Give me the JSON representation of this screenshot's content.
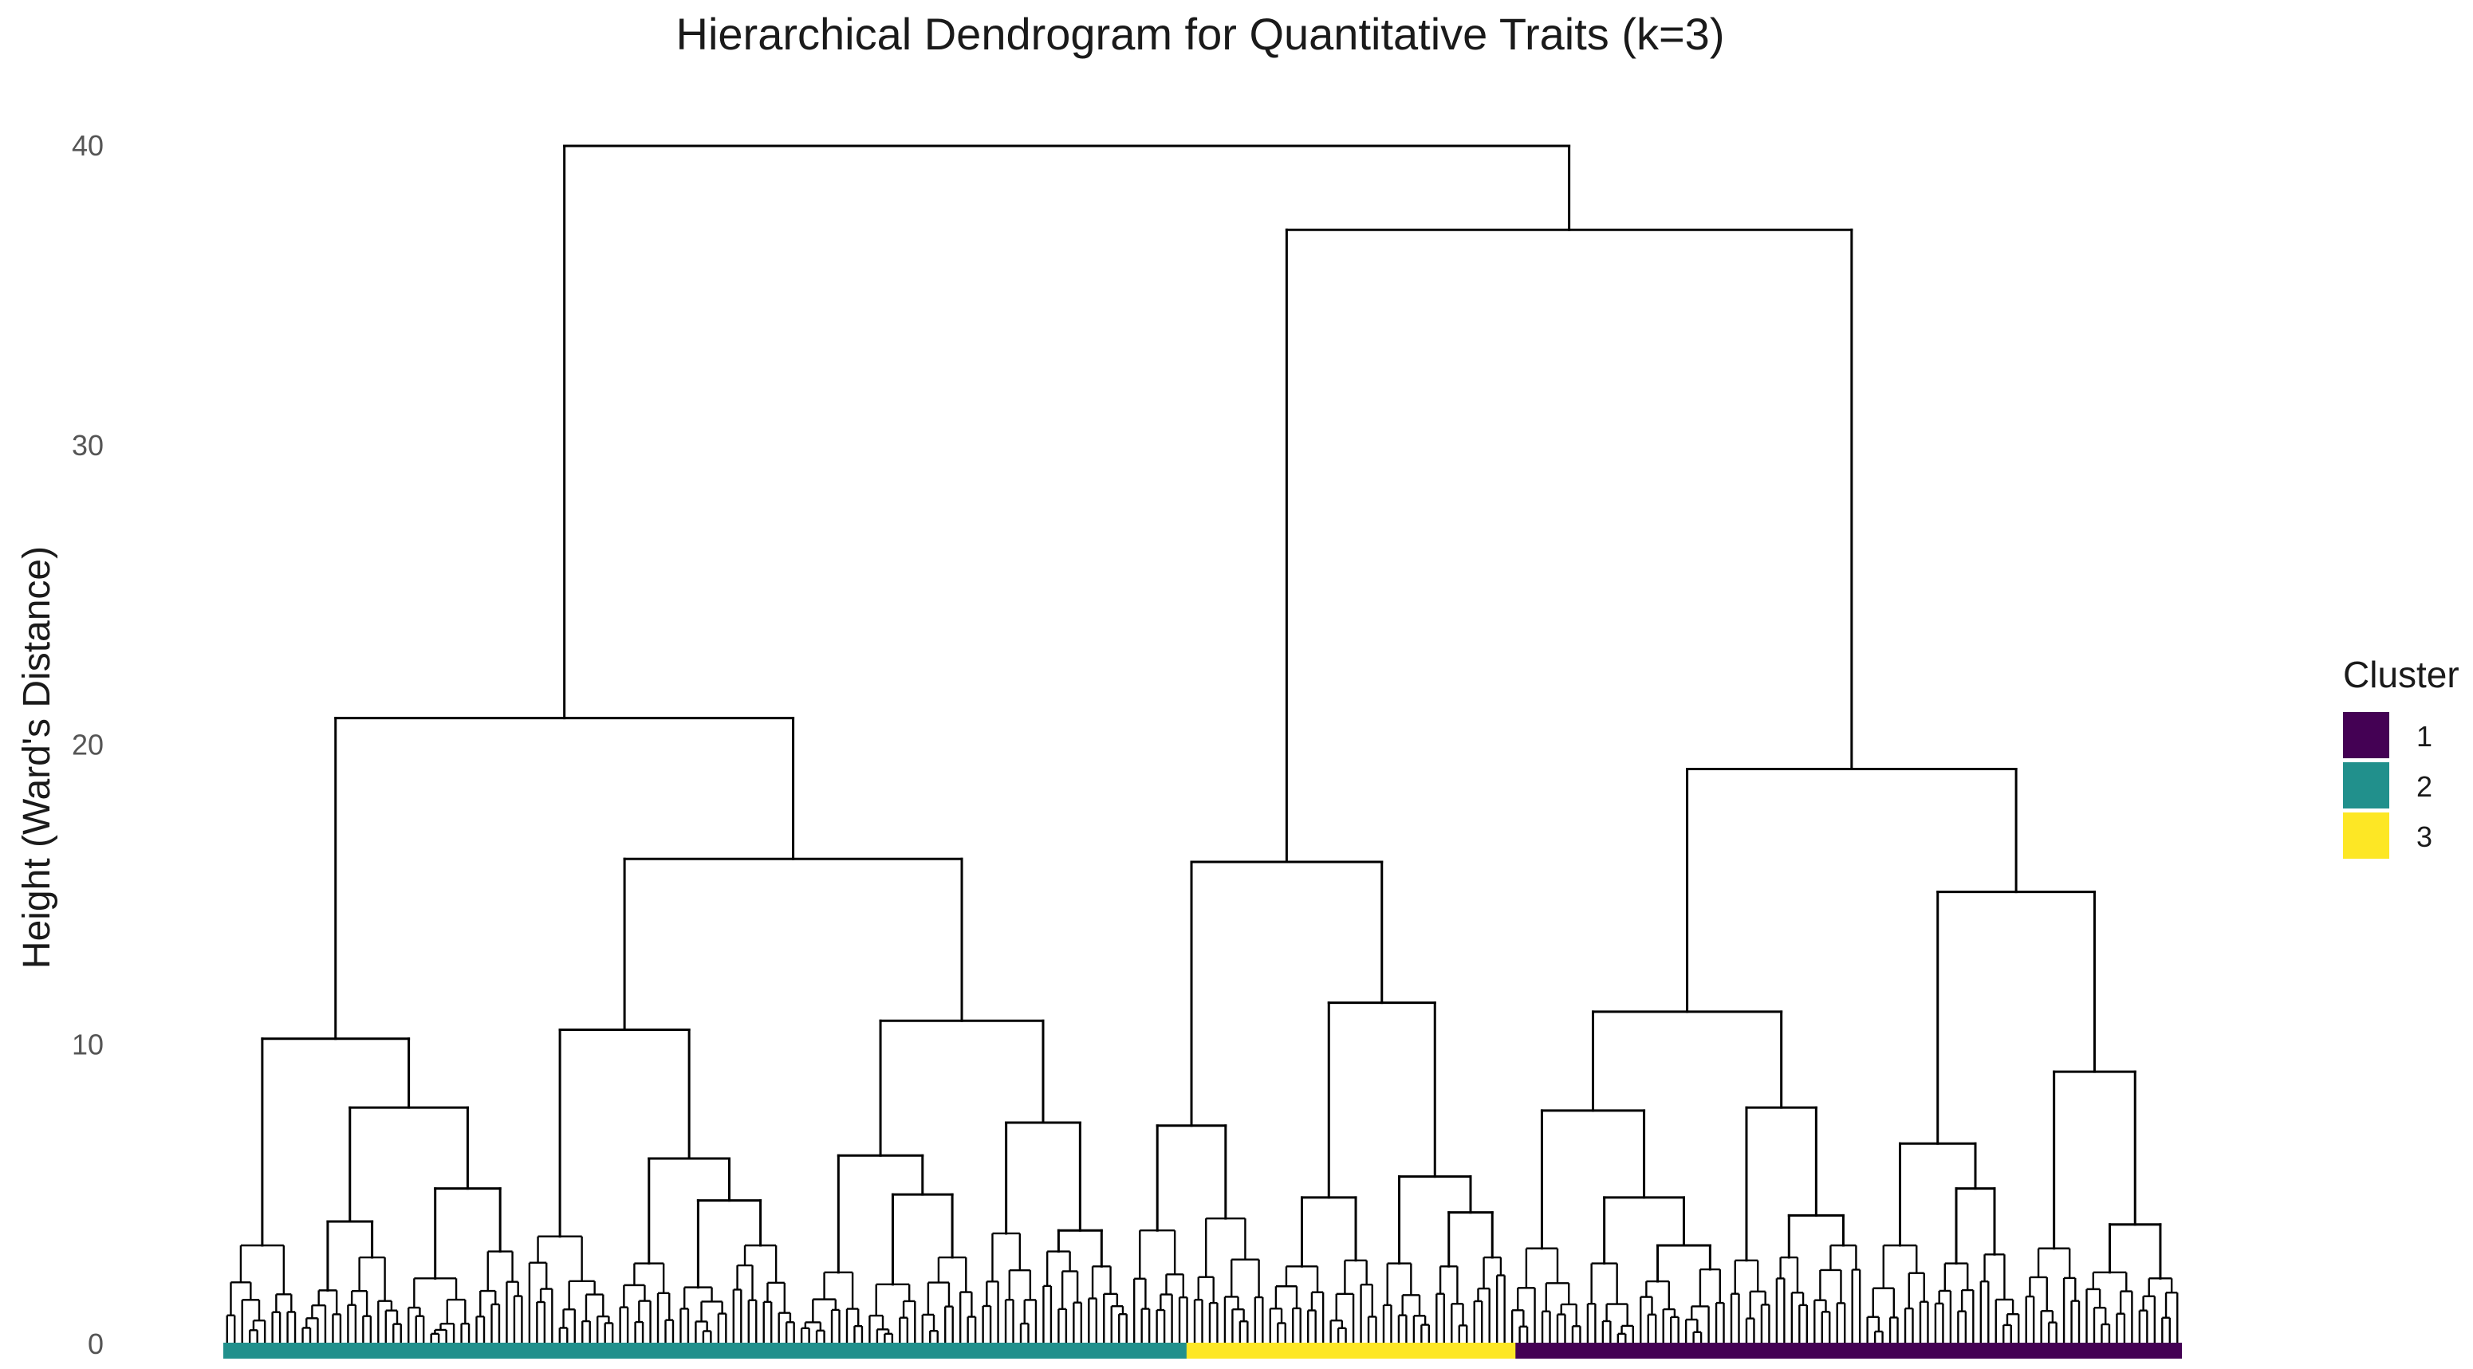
{
  "chart_data": {
    "type": "dendrogram",
    "title": "Hierarchical Dendrogram for Quantitative Traits (k=3)",
    "ylabel": "Height (Ward's Distance)",
    "xlabel": "",
    "ylim": [
      0,
      40
    ],
    "yticks": [
      0,
      10,
      20,
      30,
      40
    ],
    "grid": false,
    "legend": {
      "title": "Cluster",
      "position": "right",
      "entries": [
        {
          "label": "1",
          "color": "#440154"
        },
        {
          "label": "2",
          "color": "#21908C"
        },
        {
          "label": "3",
          "color": "#FDE725"
        }
      ]
    },
    "cluster_bar_order": [
      {
        "cluster": "2",
        "leaf_fraction": 0.492
      },
      {
        "cluster": "3",
        "leaf_fraction": 0.168
      },
      {
        "cluster": "1",
        "leaf_fraction": 0.34
      }
    ],
    "tree": {
      "h": 40.0,
      "c": [
        {
          "h": 20.9,
          "c": [
            {
              "h": 10.2,
              "c": [
                {
                  "h": 3.3,
                  "n": 10
                },
                {
                  "h": 7.9,
                  "c": [
                    {
                      "h": 4.1,
                      "c": [
                        {
                          "h": 1.8,
                          "n": 6
                        },
                        {
                          "h": 2.9,
                          "n": 8
                        }
                      ]
                    },
                    {
                      "h": 5.2,
                      "c": [
                        {
                          "h": 2.2,
                          "n": 9
                        },
                        {
                          "h": 3.1,
                          "n": 7
                        }
                      ]
                    }
                  ]
                }
              ]
            },
            {
              "h": 16.2,
              "c": [
                {
                  "h": 10.5,
                  "c": [
                    {
                      "h": 3.6,
                      "n": 12
                    },
                    {
                      "h": 6.2,
                      "c": [
                        {
                          "h": 2.7,
                          "n": 8
                        },
                        {
                          "h": 4.8,
                          "c": [
                            {
                              "h": 1.9,
                              "n": 7
                            },
                            {
                              "h": 3.3,
                              "n": 9
                            }
                          ]
                        }
                      ]
                    }
                  ]
                },
                {
                  "h": 10.8,
                  "c": [
                    {
                      "h": 6.3,
                      "c": [
                        {
                          "h": 2.4,
                          "n": 9
                        },
                        {
                          "h": 5.0,
                          "c": [
                            {
                              "h": 2.0,
                              "n": 7
                            },
                            {
                              "h": 2.9,
                              "n": 8
                            }
                          ]
                        }
                      ]
                    },
                    {
                      "h": 7.4,
                      "c": [
                        {
                          "h": 3.7,
                          "n": 8
                        },
                        {
                          "h": 3.8,
                          "c": [
                            {
                              "h": 3.1,
                              "n": 6
                            },
                            {
                              "h": 2.6,
                              "n": 6
                            }
                          ]
                        }
                      ]
                    }
                  ]
                }
              ]
            }
          ]
        },
        {
          "h": 37.2,
          "c": [
            {
              "h": 16.1,
              "c": [
                {
                  "h": 7.3,
                  "c": [
                    {
                      "h": 3.8,
                      "n": 8
                    },
                    {
                      "h": 4.2,
                      "n": 10
                    }
                  ]
                },
                {
                  "h": 11.4,
                  "c": [
                    {
                      "h": 4.9,
                      "c": [
                        {
                          "h": 2.6,
                          "n": 8
                        },
                        {
                          "h": 2.8,
                          "n": 7
                        }
                      ]
                    },
                    {
                      "h": 5.6,
                      "c": [
                        {
                          "h": 2.7,
                          "n": 7
                        },
                        {
                          "h": 4.4,
                          "c": [
                            {
                              "h": 2.6,
                              "n": 5
                            },
                            {
                              "h": 2.9,
                              "n": 5
                            }
                          ]
                        }
                      ]
                    }
                  ]
                }
              ]
            },
            {
              "h": 19.2,
              "c": [
                {
                  "h": 11.1,
                  "c": [
                    {
                      "h": 7.8,
                      "c": [
                        {
                          "h": 3.2,
                          "n": 10
                        },
                        {
                          "h": 4.9,
                          "c": [
                            {
                              "h": 2.7,
                              "n": 7
                            },
                            {
                              "h": 3.3,
                              "c": [
                                {
                                  "h": 2.1,
                                  "n": 6
                                },
                                {
                                  "h": 2.5,
                                  "n": 6
                                }
                              ]
                            }
                          ]
                        }
                      ]
                    },
                    {
                      "h": 7.9,
                      "c": [
                        {
                          "h": 2.8,
                          "n": 6
                        },
                        {
                          "h": 4.3,
                          "c": [
                            {
                              "h": 2.9,
                              "n": 5
                            },
                            {
                              "h": 3.3,
                              "n": 7
                            }
                          ]
                        }
                      ]
                    }
                  ]
                },
                {
                  "h": 15.1,
                  "c": [
                    {
                      "h": 6.7,
                      "c": [
                        {
                          "h": 3.3,
                          "n": 9
                        },
                        {
                          "h": 5.2,
                          "c": [
                            {
                              "h": 2.7,
                              "n": 6
                            },
                            {
                              "h": 3.0,
                              "n": 6
                            }
                          ]
                        }
                      ]
                    },
                    {
                      "h": 9.1,
                      "c": [
                        {
                          "h": 3.2,
                          "n": 8
                        },
                        {
                          "h": 4.0,
                          "c": [
                            {
                              "h": 2.4,
                              "n": 7
                            },
                            {
                              "h": 2.2,
                              "n": 6
                            }
                          ]
                        }
                      ]
                    }
                  ]
                }
              ]
            }
          ]
        }
      ]
    }
  }
}
